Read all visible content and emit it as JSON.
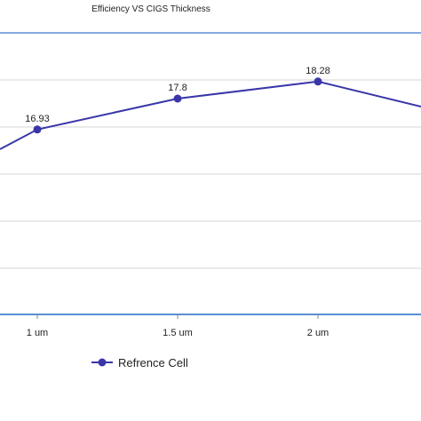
{
  "chart_data": {
    "type": "line",
    "title": "Efficiency VS CIGS Thickness",
    "xlabel": "",
    "ylabel": "",
    "x": [
      "1 um",
      "1.5 um",
      "2 um"
    ],
    "series": [
      {
        "name": "Refrence Cell",
        "values": [
          16.93,
          17.8,
          18.28
        ],
        "data_labels": [
          "16.93",
          "17.8",
          "18.28"
        ]
      }
    ],
    "grid": true,
    "legend": "bottom",
    "colors": {
      "series": "#3a36a8",
      "grid": "#d6d6d6",
      "frame": "#5b8fd6",
      "axis": "#5b8fd6"
    }
  }
}
